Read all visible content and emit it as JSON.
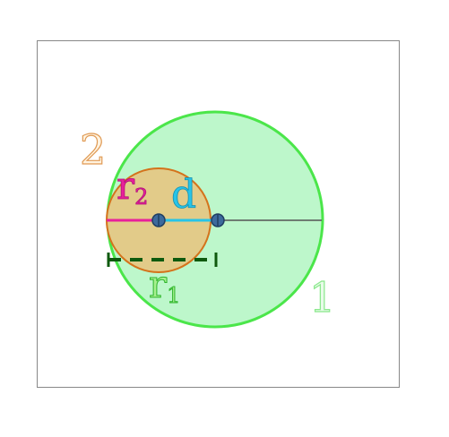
{
  "labels": {
    "circle_1": "1",
    "circle_2": "2",
    "radius_2": "r",
    "radius_2_sub": "2",
    "radius_1": "r",
    "radius_1_sub": "1",
    "distance": "d"
  },
  "colors": {
    "frame": "#888888",
    "circle_1_fill": "#bdf7cb",
    "circle_1_stroke": "#4be64a",
    "circle_1_label": "#8ae88c",
    "circle_2_fill": "#e2cb89",
    "circle_2_stroke": "#d4731c",
    "circle_2_label": "#e09a54",
    "radius_2_line": "#e8209a",
    "distance_line": "#27c4e8",
    "radius_1_dash": "#0e5a0e",
    "radius_1_label": "#2db52b",
    "center_point": "#3d6a9c"
  }
}
